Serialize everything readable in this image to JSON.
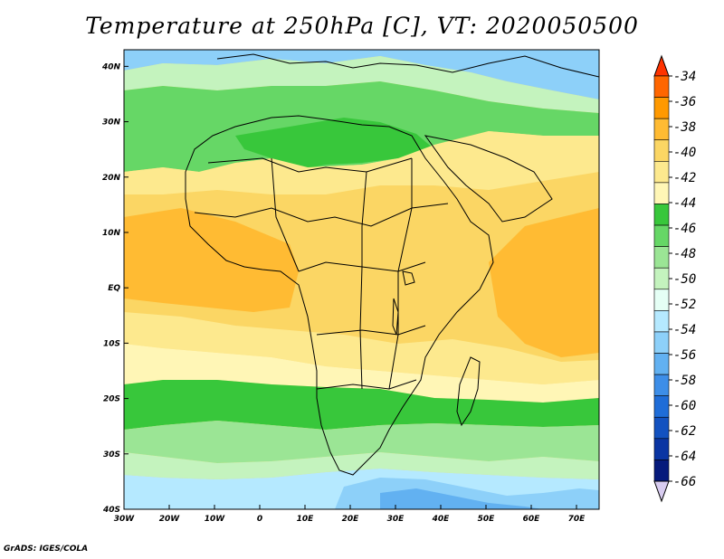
{
  "title": "Temperature at 250hPa [C], VT: 2020050500",
  "credit": "GrADS: IGES/COLA",
  "map": {
    "lon_range": [
      -30,
      75
    ],
    "lat_range": [
      -40,
      45
    ],
    "lon_ticks": [
      "30W",
      "20W",
      "10W",
      "0",
      "10E",
      "20E",
      "30E",
      "40E",
      "50E",
      "60E",
      "70E"
    ],
    "lat_ticks": [
      "40N",
      "30N",
      "20N",
      "10N",
      "EQ",
      "10S",
      "20S",
      "30S",
      "40S"
    ]
  },
  "colorbar": {
    "labels": [
      "-34",
      "-36",
      "-38",
      "-40",
      "-42",
      "-44",
      "-46",
      "-48",
      "-50",
      "-52",
      "-54",
      "-56",
      "-58",
      "-60",
      "-62",
      "-64",
      "-66"
    ],
    "colors": [
      "#ff3300",
      "#ff6600",
      "#ff9900",
      "#ffbb33",
      "#fbd664",
      "#fde98e",
      "#fff6b6",
      "#38c73b",
      "#66d766",
      "#9be595",
      "#c4f3be",
      "#e5fff5",
      "#b5e9ff",
      "#8dd0f9",
      "#62b1f1",
      "#3d8ee8",
      "#1f6dd8",
      "#1352c0",
      "#0a35a3",
      "#061a7c",
      "#d8ccf0"
    ],
    "color_names": [
      "over-red",
      "above-34",
      "above-36",
      "above-38",
      "above-40",
      "above-42",
      "above-44",
      "above-46",
      "above-48",
      "above-50",
      "above-52",
      "above-54",
      "above-56",
      "above-58",
      "above-60",
      "above-62",
      "above-64",
      "above-66",
      "below-66-a",
      "below-66-b",
      "under"
    ]
  }
}
